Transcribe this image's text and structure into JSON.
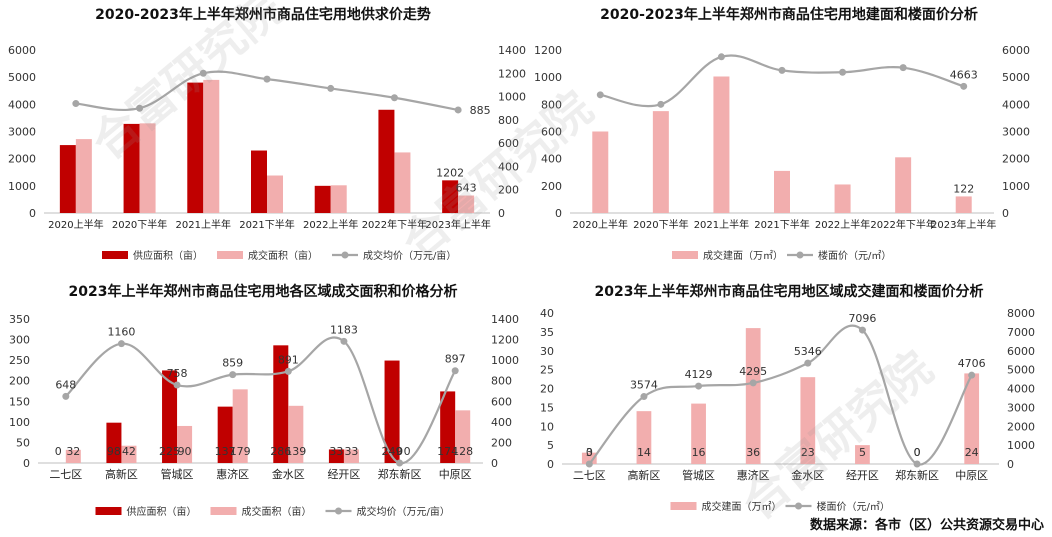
{
  "source": "数据来源：各市（区）公共资源交易中心",
  "watermark": "合富研究院",
  "colors": {
    "supply": "#c00000",
    "deal": "#f2aeae",
    "line": "#a6a6a6"
  },
  "chart_data": [
    {
      "id": "p1",
      "type": "bar",
      "title": "2020-2023年上半年郑州市商品住宅用地供求价走势",
      "categories": [
        "2020上半年",
        "2020下半年",
        "2021上半年",
        "2021下半年",
        "2022上半年",
        "2022年下半年",
        "2023年上半年"
      ],
      "series": [
        {
          "name": "供应面积（亩）",
          "kind": "bar",
          "axis": "left",
          "color": "#c00000",
          "values": [
            2500,
            3280,
            4800,
            2300,
            1000,
            3800,
            1202
          ]
        },
        {
          "name": "成交面积（亩）",
          "kind": "bar",
          "axis": "left",
          "color": "#f2aeae",
          "values": [
            2720,
            3300,
            4900,
            1380,
            1020,
            2230,
            643
          ]
        },
        {
          "name": "成交均价（万元/亩）",
          "kind": "line",
          "axis": "right",
          "color": "#a6a6a6",
          "values": [
            940,
            900,
            1200,
            1150,
            1070,
            990,
            885
          ]
        }
      ],
      "data_labels": [
        {
          "series": 0,
          "index": 6,
          "text": "1202"
        },
        {
          "series": 1,
          "index": 6,
          "text": "643"
        },
        {
          "series": 2,
          "index": 6,
          "text": "885"
        }
      ],
      "yleft": {
        "min": 0,
        "max": 6000,
        "step": 1000
      },
      "yright": {
        "min": 0,
        "max": 1400,
        "step": 200
      }
    },
    {
      "id": "p2",
      "type": "bar",
      "title": "2020-2023年上半年郑州市商品住宅用地建面和楼面价分析",
      "categories": [
        "2020上半年",
        "2020下半年",
        "2021上半年",
        "2021下半年",
        "2022上半年",
        "2022年下半年",
        "2023年上半年"
      ],
      "series": [
        {
          "name": "成交建面（万㎡）",
          "kind": "bar",
          "axis": "left",
          "color": "#f2aeae",
          "values": [
            600,
            750,
            1005,
            310,
            210,
            410,
            122
          ]
        },
        {
          "name": "楼面价（元/㎡）",
          "kind": "line",
          "axis": "right",
          "color": "#a6a6a6",
          "values": [
            4350,
            4000,
            5750,
            5250,
            5180,
            5350,
            4663
          ]
        }
      ],
      "data_labels": [
        {
          "series": 0,
          "index": 6,
          "text": "122"
        },
        {
          "series": 1,
          "index": 6,
          "text": "4663"
        }
      ],
      "yleft": {
        "min": 0,
        "max": 1200,
        "step": 200
      },
      "yright": {
        "min": 0,
        "max": 6000,
        "step": 1000
      }
    },
    {
      "id": "p3",
      "type": "bar",
      "title": "2023年上半年郑州市商品住宅用地各区域成交面积和价格分析",
      "categories": [
        "二七区",
        "高新区",
        "管城区",
        "惠济区",
        "金水区",
        "经开区",
        "郑东新区",
        "中原区"
      ],
      "series": [
        {
          "name": "供应面积（亩）",
          "kind": "bar",
          "axis": "left",
          "color": "#c00000",
          "values": [
            0,
            98,
            225,
            137,
            286,
            33,
            249,
            174
          ]
        },
        {
          "name": "成交面积（亩）",
          "kind": "bar",
          "axis": "left",
          "color": "#f2aeae",
          "values": [
            32,
            42,
            90,
            179,
            139,
            33,
            0,
            128
          ]
        },
        {
          "name": "成交均价（万元/亩）",
          "kind": "line",
          "axis": "right",
          "color": "#a6a6a6",
          "values": [
            648,
            1160,
            758,
            859,
            891,
            1183,
            0,
            897
          ]
        }
      ],
      "data_labels": [
        {
          "series": 0,
          "index": 0,
          "text": "0"
        },
        {
          "series": 1,
          "index": 0,
          "text": "32"
        },
        {
          "series": 0,
          "index": 1,
          "text": "98"
        },
        {
          "series": 1,
          "index": 1,
          "text": "42"
        },
        {
          "series": 0,
          "index": 2,
          "text": "225"
        },
        {
          "series": 1,
          "index": 2,
          "text": "90"
        },
        {
          "series": 0,
          "index": 3,
          "text": "137"
        },
        {
          "series": 1,
          "index": 3,
          "text": "179"
        },
        {
          "series": 0,
          "index": 4,
          "text": "286"
        },
        {
          "series": 1,
          "index": 4,
          "text": "139"
        },
        {
          "series": 0,
          "index": 5,
          "text": "33"
        },
        {
          "series": 1,
          "index": 5,
          "text": "33"
        },
        {
          "series": 0,
          "index": 6,
          "text": "249"
        },
        {
          "series": 1,
          "index": 6,
          "text": "0"
        },
        {
          "series": 0,
          "index": 7,
          "text": "174"
        },
        {
          "series": 1,
          "index": 7,
          "text": "128"
        },
        {
          "series": 2,
          "index": 0,
          "text": "648"
        },
        {
          "series": 2,
          "index": 1,
          "text": "1160"
        },
        {
          "series": 2,
          "index": 2,
          "text": "758"
        },
        {
          "series": 2,
          "index": 3,
          "text": "859"
        },
        {
          "series": 2,
          "index": 4,
          "text": "891"
        },
        {
          "series": 2,
          "index": 5,
          "text": "1183"
        },
        {
          "series": 2,
          "index": 6,
          "text": "0"
        },
        {
          "series": 2,
          "index": 7,
          "text": "897"
        }
      ],
      "yleft": {
        "min": 0,
        "max": 350,
        "step": 50
      },
      "yright": {
        "min": 0,
        "max": 1400,
        "step": 200
      }
    },
    {
      "id": "p4",
      "type": "bar",
      "title": "2023年上半年郑州市商品住宅用地区域成交建面和楼面价分析",
      "categories": [
        "二七区",
        "高新区",
        "管城区",
        "惠济区",
        "金水区",
        "经开区",
        "郑东新区",
        "中原区"
      ],
      "series": [
        {
          "name": "成交建面（万㎡）",
          "kind": "bar",
          "axis": "left",
          "color": "#f2aeae",
          "values": [
            3,
            14,
            16,
            36,
            23,
            5,
            0,
            24
          ]
        },
        {
          "name": "楼面价（元/㎡）",
          "kind": "line",
          "axis": "right",
          "color": "#a6a6a6",
          "values": [
            0,
            3574,
            4129,
            4295,
            5346,
            7096,
            0,
            4706
          ]
        }
      ],
      "data_labels": [
        {
          "series": 0,
          "index": 0,
          "text": "3"
        },
        {
          "series": 0,
          "index": 1,
          "text": "14"
        },
        {
          "series": 0,
          "index": 2,
          "text": "16"
        },
        {
          "series": 0,
          "index": 3,
          "text": "36"
        },
        {
          "series": 0,
          "index": 4,
          "text": "23"
        },
        {
          "series": 0,
          "index": 5,
          "text": "5"
        },
        {
          "series": 0,
          "index": 6,
          "text": "0"
        },
        {
          "series": 0,
          "index": 7,
          "text": "24"
        },
        {
          "series": 1,
          "index": 0,
          "text": "0"
        },
        {
          "series": 1,
          "index": 1,
          "text": "3574"
        },
        {
          "series": 1,
          "index": 2,
          "text": "4129"
        },
        {
          "series": 1,
          "index": 3,
          "text": "4295"
        },
        {
          "series": 1,
          "index": 4,
          "text": "5346"
        },
        {
          "series": 1,
          "index": 5,
          "text": "7096"
        },
        {
          "series": 1,
          "index": 6,
          "text": "0"
        },
        {
          "series": 1,
          "index": 7,
          "text": "4706"
        }
      ],
      "yleft": {
        "min": 0,
        "max": 40,
        "step": 5
      },
      "yright": {
        "min": 0,
        "max": 8000,
        "step": 1000
      }
    }
  ]
}
